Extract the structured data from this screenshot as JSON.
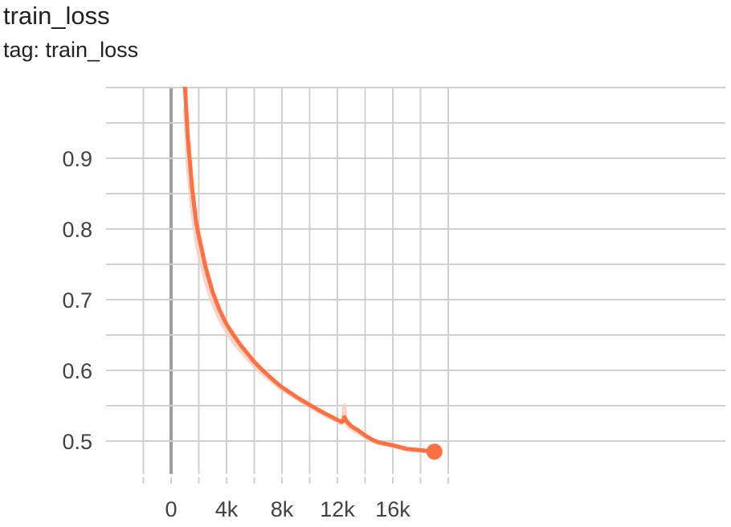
{
  "title": "train_loss",
  "subtitle": "tag: train_loss",
  "colors": {
    "series": "#ff7043",
    "series_raw": "#ffccbc",
    "grid": "#d0d0d0",
    "zero_line": "#9e9e9e",
    "axis_text": "#424242"
  },
  "chart_data": {
    "type": "line",
    "title": "train_loss",
    "subtitle": "tag: train_loss",
    "xlabel": "",
    "ylabel": "",
    "grid": true,
    "xlim": [
      -2000,
      20000
    ],
    "ylim": [
      0.45,
      1.0
    ],
    "x_ticks": [
      0,
      4000,
      8000,
      12000,
      16000
    ],
    "x_tick_labels": [
      "0",
      "4k",
      "8k",
      "12k",
      "16k"
    ],
    "y_ticks": [
      0.5,
      0.6,
      0.7,
      0.8,
      0.9
    ],
    "y_tick_labels": [
      "0.5",
      "0.6",
      "0.7",
      "0.8",
      "0.9"
    ],
    "series": [
      {
        "smoothed": true,
        "x": [
          1000,
          1200,
          1500,
          1800,
          2000,
          2500,
          3000,
          3500,
          4000,
          4500,
          5000,
          5500,
          6000,
          6500,
          7000,
          7500,
          8000,
          9000,
          10000,
          11000,
          12000,
          12300,
          12400,
          12500,
          12700,
          13000,
          13500,
          14000,
          14500,
          15000,
          16000,
          17000,
          18000,
          19000
        ],
        "y": [
          1.0,
          0.93,
          0.86,
          0.81,
          0.79,
          0.745,
          0.71,
          0.685,
          0.665,
          0.65,
          0.636,
          0.624,
          0.612,
          0.602,
          0.593,
          0.584,
          0.576,
          0.563,
          0.551,
          0.54,
          0.53,
          0.527,
          0.528,
          0.534,
          0.527,
          0.521,
          0.515,
          0.508,
          0.502,
          0.498,
          0.494,
          0.489,
          0.487,
          0.485
        ]
      },
      {
        "smoothed": false,
        "x": [
          1000,
          1200,
          1500,
          1800,
          2000,
          2500,
          3000,
          3500,
          4000,
          4500,
          5000,
          5500,
          6000,
          6500,
          7000,
          7500,
          8000,
          9000,
          10000,
          11000,
          12000,
          12300,
          12400,
          12500,
          12600,
          12800,
          13000,
          13500,
          14000,
          14500,
          15000,
          16000,
          17000,
          18000,
          19000
        ],
        "y": [
          0.97,
          0.89,
          0.83,
          0.785,
          0.765,
          0.725,
          0.695,
          0.673,
          0.655,
          0.64,
          0.628,
          0.617,
          0.606,
          0.597,
          0.589,
          0.581,
          0.573,
          0.561,
          0.549,
          0.538,
          0.528,
          0.525,
          0.53,
          0.55,
          0.528,
          0.52,
          0.517,
          0.512,
          0.506,
          0.5,
          0.497,
          0.493,
          0.488,
          0.486,
          0.484
        ]
      }
    ]
  }
}
